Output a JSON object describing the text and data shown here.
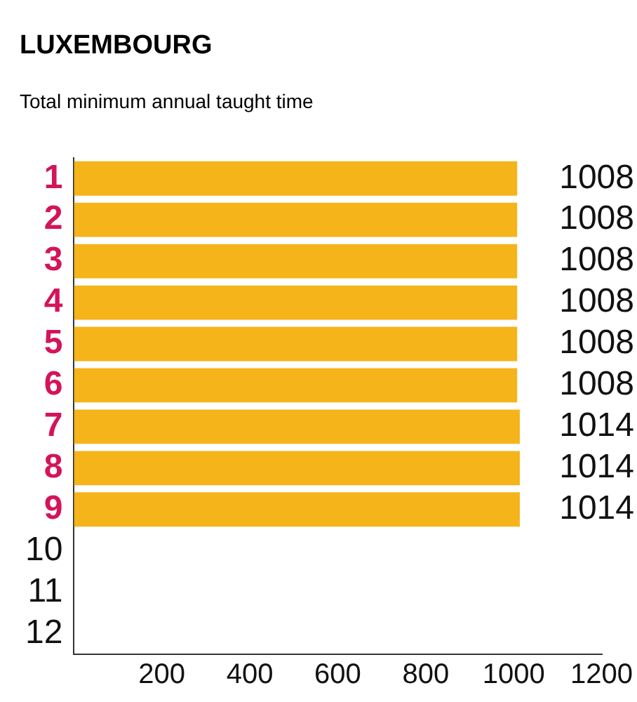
{
  "chart_data": {
    "type": "bar",
    "orientation": "horizontal",
    "title": "LUXEMBOURG",
    "subtitle": "Total minimum annual taught time",
    "categories": [
      "1",
      "2",
      "3",
      "4",
      "5",
      "6",
      "7",
      "8",
      "9",
      "10",
      "11",
      "12"
    ],
    "values": [
      1008,
      1008,
      1008,
      1008,
      1008,
      1008,
      1014,
      1014,
      1014,
      null,
      null,
      null
    ],
    "color": "#f4b41a",
    "data_labels": true,
    "grid": false,
    "legend": false,
    "xlim": [
      0,
      1200
    ],
    "xticks": [
      200,
      400,
      600,
      800,
      1000,
      1200
    ]
  }
}
